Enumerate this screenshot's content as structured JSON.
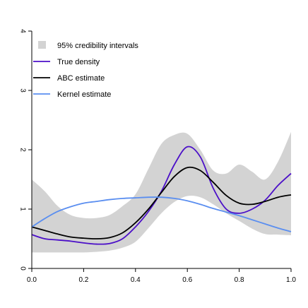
{
  "chart_data": {
    "type": "line",
    "title": "",
    "xlabel": "",
    "ylabel": "",
    "xlim": [
      0,
      1
    ],
    "ylim": [
      0,
      4
    ],
    "grid": false,
    "legend_position": "top-left",
    "x_ticks": [
      "0.0",
      "0.2",
      "0.4",
      "0.6",
      "0.8",
      "1.0"
    ],
    "y_ticks": [
      "0",
      "1",
      "2",
      "3",
      "4"
    ],
    "credibility_band": {
      "name": "95% credibility intervals",
      "color": "#d3d3d3",
      "x": [
        0.0,
        0.05,
        0.1,
        0.15,
        0.2,
        0.25,
        0.3,
        0.35,
        0.4,
        0.45,
        0.5,
        0.55,
        0.6,
        0.65,
        0.7,
        0.75,
        0.8,
        0.85,
        0.9,
        0.95,
        1.0
      ],
      "lower": [
        0.27,
        0.27,
        0.27,
        0.27,
        0.27,
        0.28,
        0.3,
        0.35,
        0.45,
        0.68,
        0.93,
        1.12,
        1.22,
        1.2,
        1.08,
        0.93,
        0.8,
        0.67,
        0.58,
        0.57,
        0.56
      ],
      "upper": [
        1.5,
        1.3,
        1.05,
        0.9,
        0.85,
        0.85,
        0.9,
        1.05,
        1.25,
        1.68,
        2.1,
        2.25,
        2.27,
        2.0,
        1.65,
        1.6,
        1.75,
        1.63,
        1.5,
        1.8,
        2.3
      ]
    },
    "series": [
      {
        "name": "True density",
        "color": "#4b0fc8",
        "x": [
          0.0,
          0.05,
          0.1,
          0.15,
          0.2,
          0.25,
          0.3,
          0.35,
          0.4,
          0.45,
          0.5,
          0.55,
          0.6,
          0.65,
          0.7,
          0.75,
          0.8,
          0.85,
          0.9,
          0.95,
          1.0
        ],
        "values": [
          0.57,
          0.5,
          0.48,
          0.46,
          0.43,
          0.41,
          0.42,
          0.5,
          0.7,
          0.96,
          1.3,
          1.75,
          2.05,
          1.88,
          1.35,
          1.0,
          0.93,
          1.0,
          1.15,
          1.4,
          1.6
        ]
      },
      {
        "name": "ABC estimate",
        "color": "#000000",
        "x": [
          0.0,
          0.05,
          0.1,
          0.15,
          0.2,
          0.25,
          0.3,
          0.35,
          0.4,
          0.45,
          0.5,
          0.55,
          0.6,
          0.65,
          0.7,
          0.75,
          0.8,
          0.85,
          0.9,
          0.95,
          1.0
        ],
        "values": [
          0.7,
          0.64,
          0.58,
          0.53,
          0.51,
          0.5,
          0.52,
          0.6,
          0.77,
          1.0,
          1.28,
          1.55,
          1.7,
          1.65,
          1.45,
          1.23,
          1.1,
          1.08,
          1.13,
          1.2,
          1.24
        ]
      },
      {
        "name": "Kernel estimate",
        "color": "#5a8ef0",
        "x": [
          0.0,
          0.05,
          0.1,
          0.15,
          0.2,
          0.25,
          0.3,
          0.35,
          0.4,
          0.45,
          0.5,
          0.55,
          0.6,
          0.65,
          0.7,
          0.75,
          0.8,
          0.85,
          0.9,
          0.95,
          1.0
        ],
        "values": [
          0.7,
          0.84,
          0.96,
          1.04,
          1.1,
          1.13,
          1.16,
          1.18,
          1.19,
          1.2,
          1.2,
          1.18,
          1.14,
          1.08,
          1.01,
          0.95,
          0.89,
          0.82,
          0.75,
          0.68,
          0.62
        ]
      }
    ]
  }
}
